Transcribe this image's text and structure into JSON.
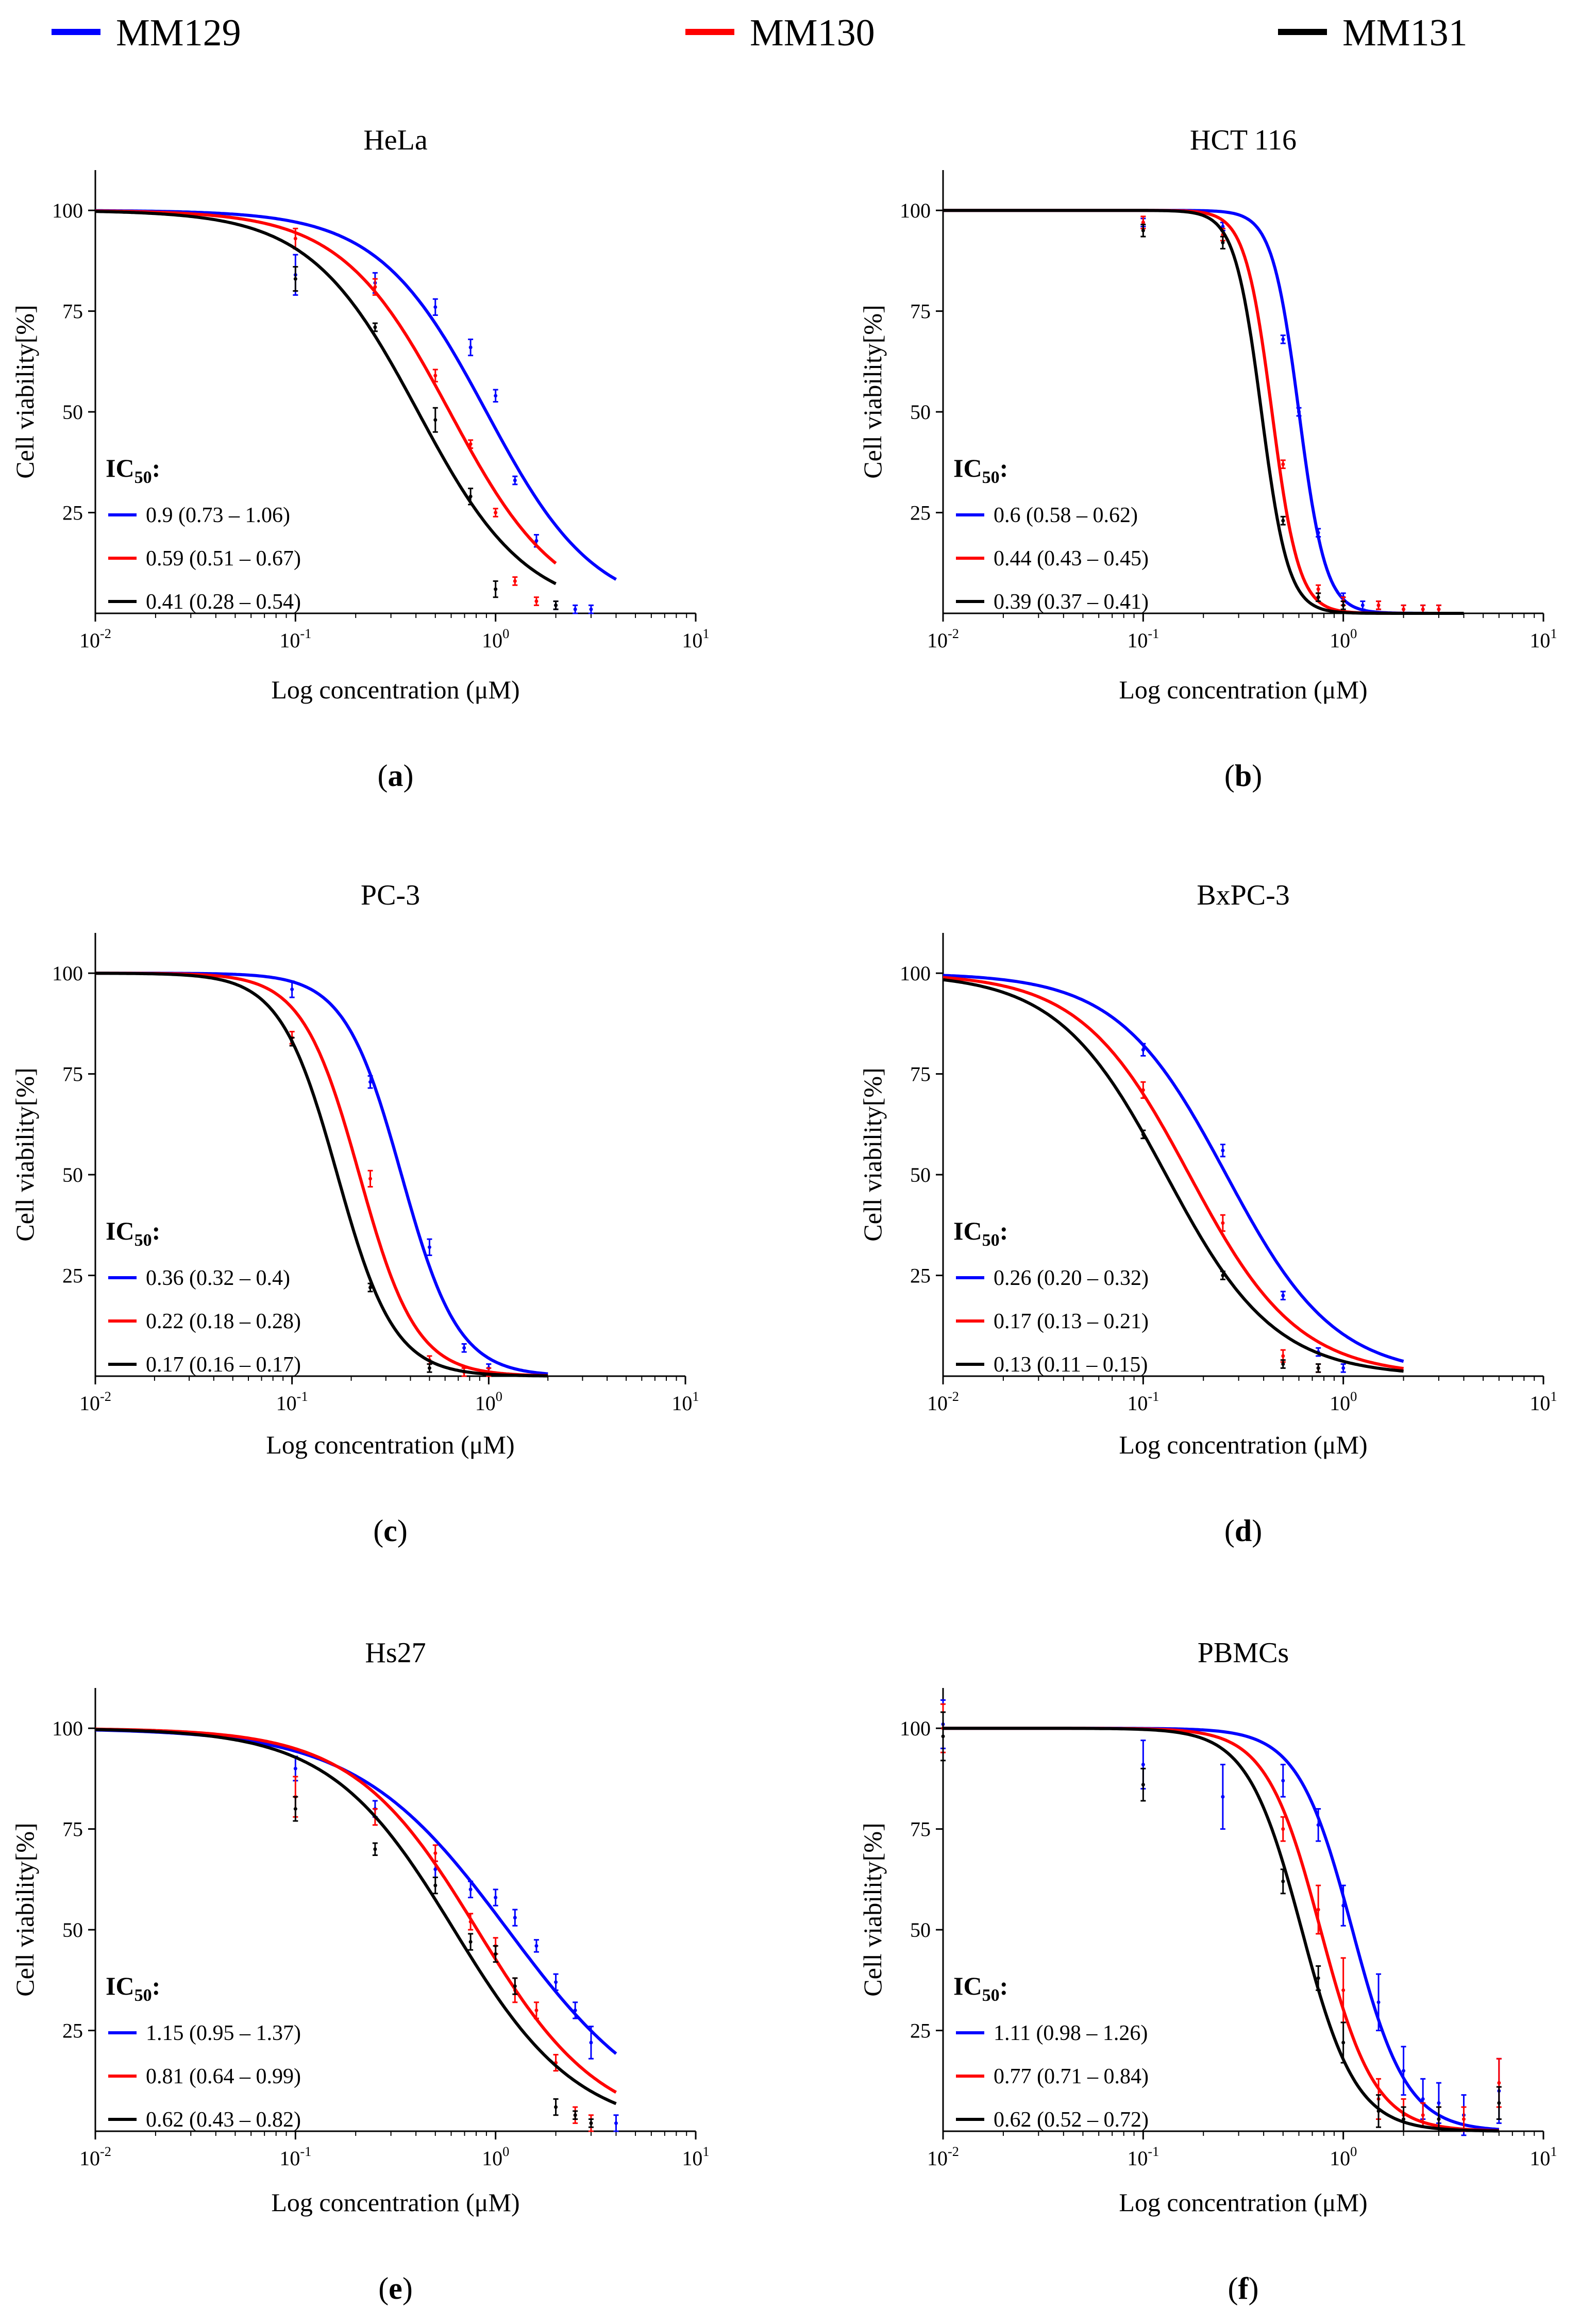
{
  "legend": [
    {
      "name": "MM129",
      "color": "#0000ff"
    },
    {
      "name": "MM130",
      "color": "#ff0000"
    },
    {
      "name": "MM131",
      "color": "#000000"
    }
  ],
  "ic50_label": "IC",
  "ic50_sub": "50",
  "ic50_colon": ":",
  "chart_data": [
    {
      "type": "line",
      "panel": "(a)",
      "panel_letter": "a",
      "title": "HeLa",
      "xlabel": "Log concentration (μM)",
      "ylabel": "Cell viability[%]",
      "xscale": "log",
      "xlim": [
        0.01,
        10
      ],
      "ylim": [
        0,
        110
      ],
      "xticks": [
        0.01,
        0.1,
        1,
        10
      ],
      "xtick_labels": [
        "10-2",
        "10-1",
        "100",
        "101"
      ],
      "yticks": [
        25,
        50,
        75,
        100
      ],
      "series": [
        {
          "name": "MM129",
          "ic50_text": "0.9 (0.73 – 1.06)",
          "ic50": 0.9,
          "hill": 1.6,
          "x_range": [
            0.01,
            4
          ],
          "points": [
            [
              0.1,
              84,
              5
            ],
            [
              0.25,
              82,
              2.5
            ],
            [
              0.5,
              76,
              2
            ],
            [
              0.75,
              66,
              2
            ],
            [
              1.0,
              54,
              1.5
            ],
            [
              1.25,
              33,
              1
            ],
            [
              1.6,
              18,
              1.5
            ],
            [
              2.0,
              2,
              1
            ],
            [
              2.5,
              1,
              1
            ],
            [
              3.0,
              1,
              1
            ]
          ]
        },
        {
          "name": "MM130",
          "ic50_text": "0.59 (0.51 – 0.67)",
          "ic50": 0.59,
          "hill": 1.6,
          "x_range": [
            0.01,
            2
          ],
          "points": [
            [
              0.1,
              93,
              2.5
            ],
            [
              0.25,
              81,
              2
            ],
            [
              0.5,
              59,
              1.5
            ],
            [
              0.75,
              42,
              1
            ],
            [
              1.0,
              25,
              1
            ],
            [
              1.25,
              8,
              1
            ],
            [
              1.6,
              3,
              1
            ]
          ]
        },
        {
          "name": "MM131",
          "ic50_text": "0.41 (0.28 – 0.54)",
          "ic50": 0.41,
          "hill": 1.6,
          "x_range": [
            0.01,
            2
          ],
          "points": [
            [
              0.1,
              83,
              3
            ],
            [
              0.25,
              71,
              1
            ],
            [
              0.5,
              48,
              3
            ],
            [
              0.75,
              29,
              2
            ],
            [
              1.0,
              6,
              2
            ],
            [
              2.0,
              2,
              1
            ]
          ]
        }
      ]
    },
    {
      "type": "line",
      "panel": "(b)",
      "panel_letter": "b",
      "title": "HCT 116",
      "xlabel": "Log concentration (μM)",
      "ylabel": "Cell viability[%]",
      "xscale": "log",
      "xlim": [
        0.01,
        10
      ],
      "ylim": [
        0,
        110
      ],
      "xticks": [
        0.01,
        0.1,
        1,
        10
      ],
      "xtick_labels": [
        "10-2",
        "10-1",
        "100",
        "101"
      ],
      "yticks": [
        25,
        50,
        75,
        100
      ],
      "series": [
        {
          "name": "MM129",
          "ic50_text": "0.6 (0.58 – 0.62)",
          "ic50": 0.6,
          "hill": 6.5,
          "x_range": [
            0.01,
            4
          ],
          "points": [
            [
              0.1,
              97,
              1
            ],
            [
              0.25,
              96,
              1
            ],
            [
              0.5,
              68,
              1
            ],
            [
              0.6,
              50,
              1
            ],
            [
              0.75,
              20,
              1
            ],
            [
              1.0,
              4,
              1
            ],
            [
              1.25,
              2,
              1
            ],
            [
              1.5,
              2,
              1
            ],
            [
              2.0,
              1,
              1
            ],
            [
              2.5,
              1,
              1
            ],
            [
              3.0,
              1,
              1
            ]
          ]
        },
        {
          "name": "MM130",
          "ic50_text": "0.44 (0.43 – 0.45)",
          "ic50": 0.44,
          "hill": 6.5,
          "x_range": [
            0.01,
            4
          ],
          "points": [
            [
              0.1,
              97,
              1.5
            ],
            [
              0.25,
              94,
              1.5
            ],
            [
              0.5,
              37,
              1
            ],
            [
              0.75,
              6,
              1
            ],
            [
              1.0,
              3,
              1
            ],
            [
              1.5,
              2,
              1
            ],
            [
              2.0,
              1,
              1
            ],
            [
              2.5,
              1,
              1
            ],
            [
              3.0,
              1,
              1
            ]
          ]
        },
        {
          "name": "MM131",
          "ic50_text": "0.39 (0.37 – 0.41)",
          "ic50": 0.39,
          "hill": 6.5,
          "x_range": [
            0.01,
            4
          ],
          "points": [
            [
              0.1,
              95,
              1.5
            ],
            [
              0.25,
              92,
              1.5
            ],
            [
              0.5,
              23,
              1
            ],
            [
              0.75,
              4,
              1
            ],
            [
              1.0,
              2,
              1
            ]
          ]
        }
      ]
    },
    {
      "type": "line",
      "panel": "(c)",
      "panel_letter": "c",
      "title": "PC-3",
      "xlabel": "Log concentration (μM)",
      "ylabel": "Cell viability[%]",
      "xscale": "log",
      "xlim": [
        0.01,
        10
      ],
      "ylim": [
        0,
        110
      ],
      "xticks": [
        0.01,
        0.1,
        1,
        10
      ],
      "xtick_labels": [
        "10-2",
        "10-1",
        "100",
        "101"
      ],
      "yticks": [
        25,
        50,
        75,
        100
      ],
      "series": [
        {
          "name": "MM129",
          "ic50_text": "0.36 (0.32 – 0.4)",
          "ic50": 0.36,
          "hill": 3.0,
          "x_range": [
            0.01,
            2
          ],
          "points": [
            [
              0.1,
              96,
              2
            ],
            [
              0.25,
              73,
              1.5
            ],
            [
              0.5,
              32,
              2
            ],
            [
              0.75,
              7,
              1
            ],
            [
              1.0,
              2,
              1
            ]
          ]
        },
        {
          "name": "MM130",
          "ic50_text": "0.22 (0.18 – 0.28)",
          "ic50": 0.22,
          "hill": 3.0,
          "x_range": [
            0.01,
            2
          ],
          "points": [
            [
              0.1,
              84,
              1.5
            ],
            [
              0.25,
              49,
              2
            ],
            [
              0.5,
              4,
              1
            ],
            [
              0.75,
              1,
              1
            ],
            [
              1.0,
              1,
              1
            ]
          ]
        },
        {
          "name": "MM131",
          "ic50_text": "0.17 (0.16 – 0.17)",
          "ic50": 0.17,
          "hill": 3.0,
          "x_range": [
            0.01,
            2
          ],
          "points": [
            [
              0.1,
              83,
              1
            ],
            [
              0.25,
              22,
              1
            ],
            [
              0.5,
              2,
              1
            ]
          ]
        }
      ]
    },
    {
      "type": "line",
      "panel": "(d)",
      "panel_letter": "d",
      "title": "BxPC-3",
      "xlabel": "Log concentration (μM)",
      "ylabel": "Cell viability[%]",
      "xscale": "log",
      "xlim": [
        0.01,
        10
      ],
      "ylim": [
        0,
        110
      ],
      "xticks": [
        0.01,
        0.1,
        1,
        10
      ],
      "xtick_labels": [
        "10-2",
        "10-1",
        "100",
        "101"
      ],
      "yticks": [
        25,
        50,
        75,
        100
      ],
      "series": [
        {
          "name": "MM129",
          "ic50_text": "0.26 (0.20 – 0.32)",
          "ic50": 0.26,
          "hill": 1.6,
          "x_range": [
            0.01,
            2
          ],
          "points": [
            [
              0.1,
              81,
              1.5
            ],
            [
              0.25,
              56,
              1.5
            ],
            [
              0.5,
              20,
              1
            ],
            [
              0.75,
              6,
              1
            ],
            [
              1.0,
              2,
              1
            ]
          ]
        },
        {
          "name": "MM130",
          "ic50_text": "0.17 (0.13 – 0.21)",
          "ic50": 0.17,
          "hill": 1.6,
          "x_range": [
            0.01,
            2
          ],
          "points": [
            [
              0.1,
              71,
              2
            ],
            [
              0.25,
              38,
              2
            ],
            [
              0.5,
              5,
              1.5
            ],
            [
              0.75,
              2,
              1
            ]
          ]
        },
        {
          "name": "MM131",
          "ic50_text": "0.13 (0.11 – 0.15)",
          "ic50": 0.13,
          "hill": 1.6,
          "x_range": [
            0.01,
            2
          ],
          "points": [
            [
              0.1,
              60,
              1
            ],
            [
              0.25,
              25,
              1
            ],
            [
              0.5,
              3,
              1
            ],
            [
              0.75,
              2,
              1
            ]
          ]
        }
      ]
    },
    {
      "type": "line",
      "panel": "(e)",
      "panel_letter": "e",
      "title": "Hs27",
      "xlabel": "Log concentration (μM)",
      "ylabel": "Cell viability[%]",
      "xscale": "log",
      "xlim": [
        0.01,
        10
      ],
      "ylim": [
        0,
        110
      ],
      "xticks": [
        0.01,
        0.1,
        1,
        10
      ],
      "xtick_labels": [
        "10-2",
        "10-1",
        "100",
        "101"
      ],
      "yticks": [
        25,
        50,
        75,
        100
      ],
      "series": [
        {
          "name": "MM129",
          "ic50_text": "1.15 (0.95 – 1.37)",
          "ic50": 1.15,
          "hill": 1.15,
          "x_range": [
            0.01,
            4
          ],
          "points": [
            [
              0.1,
              90,
              3
            ],
            [
              0.25,
              80,
              2
            ],
            [
              0.5,
              65,
              2
            ],
            [
              0.75,
              60,
              2
            ],
            [
              1.0,
              58,
              2
            ],
            [
              1.25,
              53,
              2
            ],
            [
              1.6,
              46,
              1.5
            ],
            [
              2.0,
              37,
              2
            ],
            [
              2.5,
              30,
              2
            ],
            [
              3.0,
              22,
              4
            ],
            [
              4.0,
              2,
              2
            ]
          ]
        },
        {
          "name": "MM130",
          "ic50_text": "0.81 (0.64 – 0.99)",
          "ic50": 0.81,
          "hill": 1.4,
          "x_range": [
            0.01,
            4
          ],
          "points": [
            [
              0.1,
              83,
              5
            ],
            [
              0.25,
              78,
              2
            ],
            [
              0.5,
              69,
              2
            ],
            [
              0.75,
              52,
              2
            ],
            [
              1.0,
              46,
              2
            ],
            [
              1.25,
              35,
              3
            ],
            [
              1.6,
              30,
              2
            ],
            [
              2.0,
              17,
              2
            ],
            [
              2.5,
              4,
              2
            ],
            [
              3.0,
              2,
              2
            ]
          ]
        },
        {
          "name": "MM131",
          "ic50_text": "0.62 (0.43 – 0.82)",
          "ic50": 0.62,
          "hill": 1.4,
          "x_range": [
            0.01,
            4
          ],
          "points": [
            [
              0.1,
              80,
              3
            ],
            [
              0.25,
              70,
              1.5
            ],
            [
              0.5,
              61,
              2
            ],
            [
              0.75,
              47,
              2
            ],
            [
              1.0,
              44,
              2
            ],
            [
              1.25,
              36,
              2
            ],
            [
              2.0,
              6,
              2
            ],
            [
              2.5,
              4,
              1
            ],
            [
              3.0,
              2,
              1
            ]
          ]
        }
      ]
    },
    {
      "type": "line",
      "panel": "(f)",
      "panel_letter": "f",
      "title": "PBMCs",
      "xlabel": "Log concentration (μM)",
      "ylabel": "Cell viability[%]",
      "xscale": "log",
      "xlim": [
        0.01,
        10
      ],
      "ylim": [
        0,
        110
      ],
      "xticks": [
        0.01,
        0.1,
        1,
        10
      ],
      "xtick_labels": [
        "10-2",
        "10-1",
        "100",
        "101"
      ],
      "yticks": [
        25,
        50,
        75,
        100
      ],
      "series": [
        {
          "name": "MM129",
          "ic50_text": "1.11 (0.98 – 1.26)",
          "ic50": 1.11,
          "hill": 3.2,
          "x_range": [
            0.01,
            6
          ],
          "points": [
            [
              0.01,
              101,
              6
            ],
            [
              0.1,
              91,
              6
            ],
            [
              0.25,
              83,
              8
            ],
            [
              0.5,
              87,
              4
            ],
            [
              0.75,
              76,
              4
            ],
            [
              1.0,
              56,
              5
            ],
            [
              1.5,
              32,
              7
            ],
            [
              2.0,
              15,
              6
            ],
            [
              2.5,
              8,
              5
            ],
            [
              3.0,
              7,
              5
            ],
            [
              4.0,
              4,
              5
            ],
            [
              6.0,
              10,
              8
            ]
          ]
        },
        {
          "name": "MM130",
          "ic50_text": "0.77 (0.71 – 0.84)",
          "ic50": 0.77,
          "hill": 3.2,
          "x_range": [
            0.01,
            6
          ],
          "points": [
            [
              0.01,
              100,
              6
            ],
            [
              0.5,
              75,
              3
            ],
            [
              0.75,
              55,
              6
            ],
            [
              1.0,
              35,
              8
            ],
            [
              1.5,
              8,
              5
            ],
            [
              2.0,
              4,
              4
            ],
            [
              2.5,
              4,
              3
            ],
            [
              3.0,
              3,
              3
            ],
            [
              4.0,
              3,
              3
            ],
            [
              6.0,
              12,
              6
            ]
          ]
        },
        {
          "name": "MM131",
          "ic50_text": "0.62 (0.52 – 0.72)",
          "ic50": 0.62,
          "hill": 3.2,
          "x_range": [
            0.01,
            6
          ],
          "points": [
            [
              0.01,
              98,
              6
            ],
            [
              0.1,
              86,
              4
            ],
            [
              0.5,
              62,
              3
            ],
            [
              0.75,
              38,
              3
            ],
            [
              1.0,
              22,
              5
            ],
            [
              1.5,
              5,
              4
            ],
            [
              2.0,
              3,
              3
            ],
            [
              3.0,
              3,
              3
            ],
            [
              6.0,
              7,
              4
            ]
          ]
        }
      ]
    }
  ]
}
